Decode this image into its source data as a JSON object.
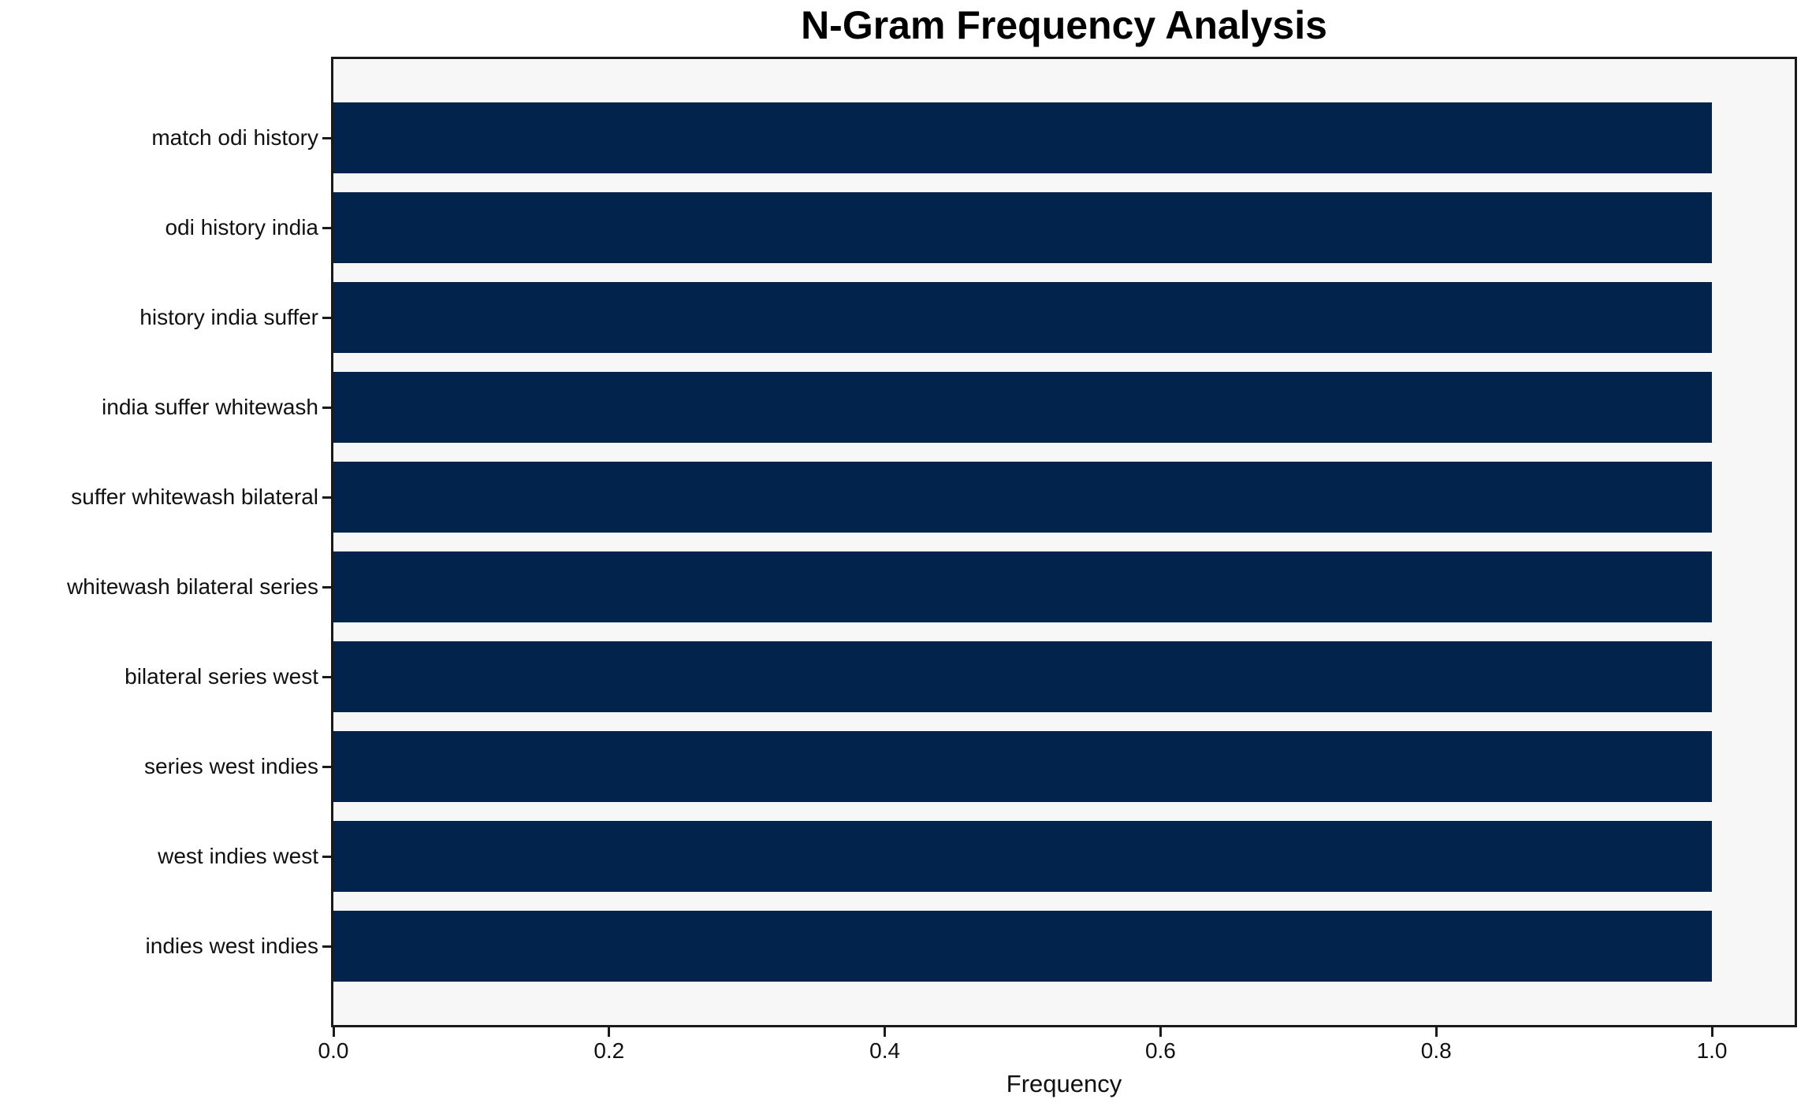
{
  "figure": {
    "background_color": "#ffffff",
    "plot_background_color": "#f7f7f7",
    "spine_color": "#1a1a1a",
    "text_color": "#111111"
  },
  "chart_data": {
    "type": "bar",
    "orientation": "horizontal",
    "title": "N-Gram Frequency Analysis",
    "xlabel": "Frequency",
    "ylabel": "",
    "categories": [
      "match odi history",
      "odi history india",
      "history india suffer",
      "india suffer whitewash",
      "suffer whitewash bilateral",
      "whitewash bilateral series",
      "bilateral series west",
      "series west indies",
      "west indies west",
      "indies west indies"
    ],
    "values": [
      1.0,
      1.0,
      1.0,
      1.0,
      1.0,
      1.0,
      1.0,
      1.0,
      1.0,
      1.0
    ],
    "xlim": [
      0,
      1.06
    ],
    "xticks": [
      0.0,
      0.2,
      0.4,
      0.6,
      0.8,
      1.0
    ],
    "xtick_labels": [
      "0.0",
      "0.2",
      "0.4",
      "0.6",
      "0.8",
      "1.0"
    ],
    "bar_color": "#02234c",
    "grid": false,
    "legend_position": "none"
  }
}
